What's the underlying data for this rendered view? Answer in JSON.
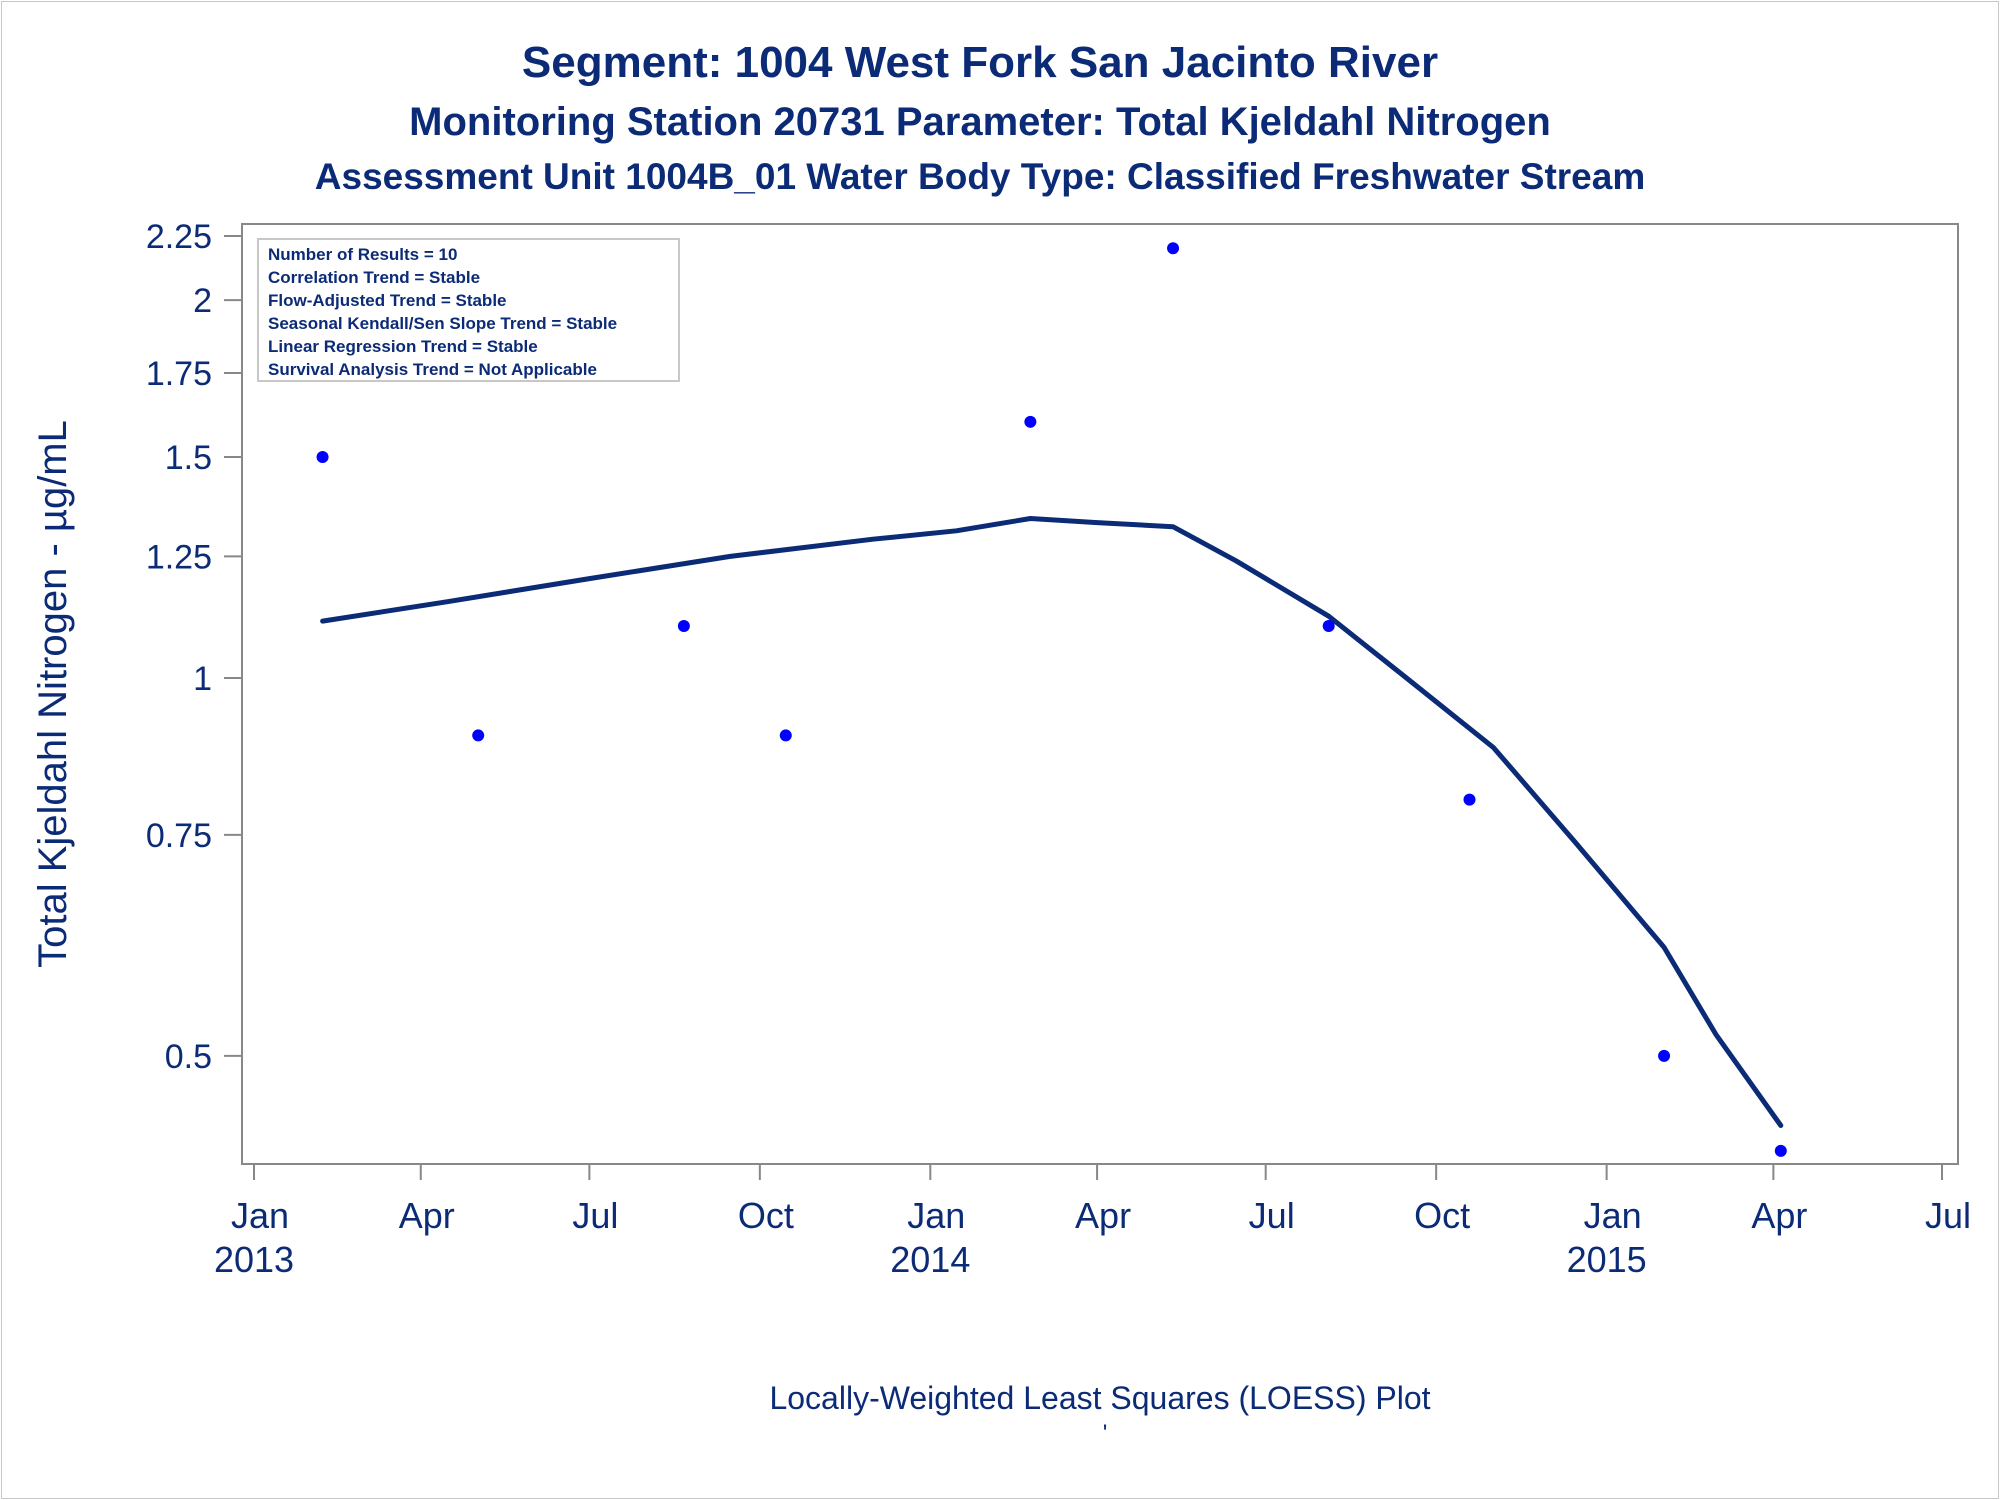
{
  "titles": {
    "line1": "Segment: 1004  West Fork San Jacinto River",
    "line2": "Monitoring Station 20731 Parameter: Total Kjeldahl Nitrogen",
    "line3": "Assessment Unit 1004B_01   Water Body Type: Classified Freshwater Stream"
  },
  "footnote": "Locally-Weighted Least Squares (LOESS) Plot",
  "footnote_mark": "'",
  "colors": {
    "text": "#0c2b77",
    "points": "#0000ff",
    "loess_line": "#0c2b77",
    "axis": "#888888"
  },
  "chart_data": {
    "type": "scatter",
    "title": "Segment: 1004  West Fork San Jacinto River",
    "xlabel": "",
    "ylabel": "Total Kjeldahl Nitrogen -  µg/mL",
    "y_scale": "log",
    "ylim": [
      0.41,
      2.3
    ],
    "xlim": [
      "2013-01-01",
      "2015-07-01"
    ],
    "grid": false,
    "y_ticks": [
      {
        "value": 0.5,
        "label": "0.5"
      },
      {
        "value": 0.75,
        "label": "0.75"
      },
      {
        "value": 1,
        "label": "1"
      },
      {
        "value": 1.25,
        "label": "1.25"
      },
      {
        "value": 1.5,
        "label": "1.5"
      },
      {
        "value": 1.75,
        "label": "1.75"
      },
      {
        "value": 2,
        "label": "2"
      },
      {
        "value": 2.25,
        "label": "2.25"
      }
    ],
    "x_ticks": [
      {
        "date": "2013-01-01",
        "label": "Jan",
        "year": "2013"
      },
      {
        "date": "2013-04-01",
        "label": "Apr",
        "year": ""
      },
      {
        "date": "2013-07-01",
        "label": "Jul",
        "year": ""
      },
      {
        "date": "2013-10-01",
        "label": "Oct",
        "year": ""
      },
      {
        "date": "2014-01-01",
        "label": "Jan",
        "year": "2014"
      },
      {
        "date": "2014-04-01",
        "label": "Apr",
        "year": ""
      },
      {
        "date": "2014-07-01",
        "label": "Jul",
        "year": ""
      },
      {
        "date": "2014-10-01",
        "label": "Oct",
        "year": ""
      },
      {
        "date": "2015-01-01",
        "label": "Jan",
        "year": "2015"
      },
      {
        "date": "2015-04-01",
        "label": "Apr",
        "year": ""
      },
      {
        "date": "2015-07-01",
        "label": "Jul",
        "year": ""
      }
    ],
    "series": [
      {
        "type": "scatter",
        "points": [
          {
            "date": "2013-02-07",
            "value": 1.5
          },
          {
            "date": "2013-05-02",
            "value": 0.9
          },
          {
            "date": "2013-08-21",
            "value": 1.1
          },
          {
            "date": "2013-10-15",
            "value": 0.9
          },
          {
            "date": "2014-02-24",
            "value": 1.6
          },
          {
            "date": "2014-05-12",
            "value": 2.2
          },
          {
            "date": "2014-08-04",
            "value": 1.1
          },
          {
            "date": "2014-10-19",
            "value": 0.8
          },
          {
            "date": "2015-02-01",
            "value": 0.5
          },
          {
            "date": "2015-04-05",
            "value": 0.42
          }
        ]
      },
      {
        "type": "line",
        "points": [
          {
            "date": "2013-02-07",
            "value": 1.11
          },
          {
            "date": "2013-04-15",
            "value": 1.15
          },
          {
            "date": "2013-07-01",
            "value": 1.2
          },
          {
            "date": "2013-09-15",
            "value": 1.25
          },
          {
            "date": "2013-12-01",
            "value": 1.29
          },
          {
            "date": "2014-01-15",
            "value": 1.31
          },
          {
            "date": "2014-02-24",
            "value": 1.34
          },
          {
            "date": "2014-04-01",
            "value": 1.33
          },
          {
            "date": "2014-05-12",
            "value": 1.32
          },
          {
            "date": "2014-06-15",
            "value": 1.24
          },
          {
            "date": "2014-08-04",
            "value": 1.12
          },
          {
            "date": "2014-09-15",
            "value": 1.0
          },
          {
            "date": "2014-11-01",
            "value": 0.88
          },
          {
            "date": "2014-12-15",
            "value": 0.74
          },
          {
            "date": "2015-02-01",
            "value": 0.61
          },
          {
            "date": "2015-03-01",
            "value": 0.52
          },
          {
            "date": "2015-04-05",
            "value": 0.44
          }
        ]
      }
    ],
    "inset_text": [
      "Number of Results = 10",
      "Correlation Trend = Stable",
      "Flow-Adjusted Trend = Stable",
      "Seasonal Kendall/Sen Slope Trend = Stable",
      "Linear Regression Trend = Stable",
      "Survival Analysis Trend = Not Applicable"
    ],
    "inset_placement": "top-left"
  }
}
